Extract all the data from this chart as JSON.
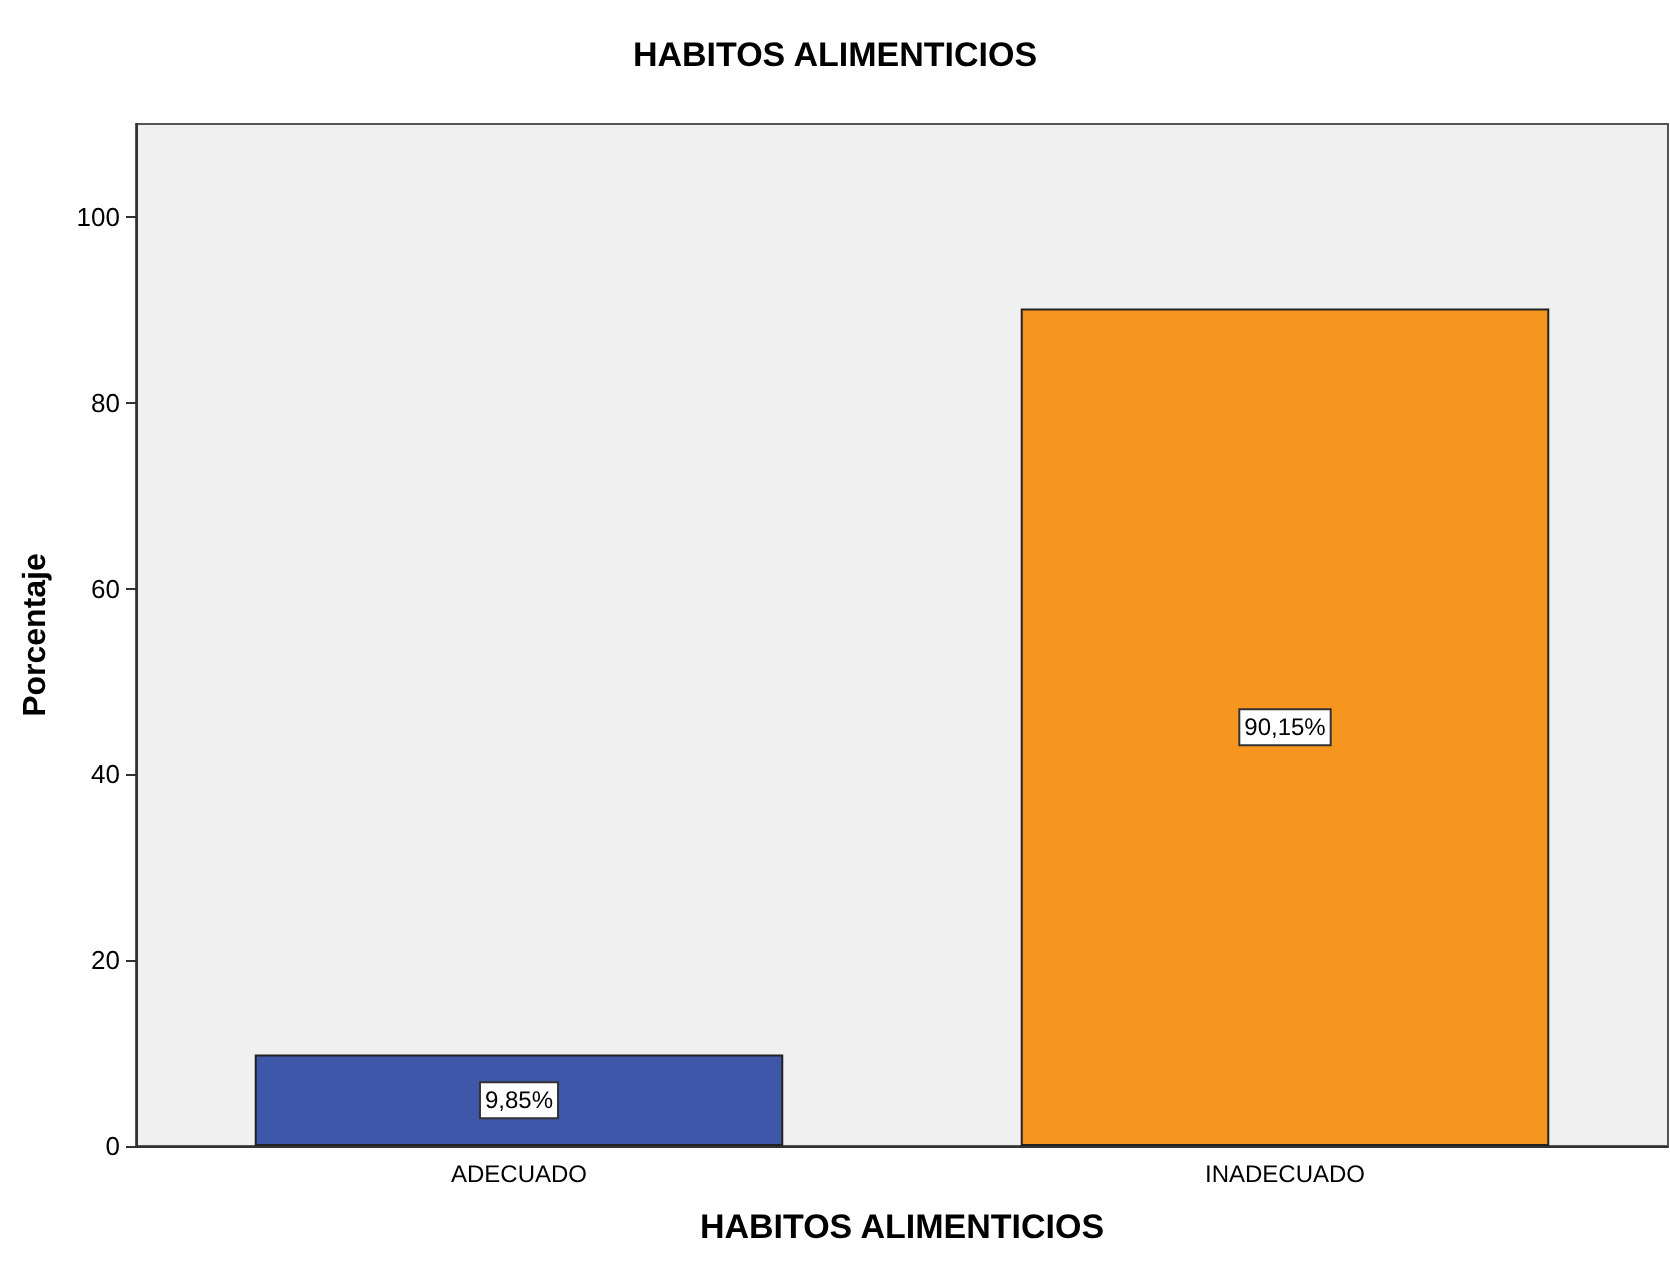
{
  "chart_data": {
    "type": "bar",
    "title": "HABITOS ALIMENTICIOS",
    "xlabel": "HABITOS ALIMENTICIOS",
    "ylabel": "Porcentaje",
    "categories": [
      "ADECUADO",
      "INADECUADO"
    ],
    "values": [
      9.85,
      90.15
    ],
    "colors": [
      "#3e57a8",
      "#f7961e"
    ],
    "value_labels": [
      "9,85%",
      "90,15%"
    ],
    "ylim": [
      0,
      110
    ],
    "yticks": [
      0,
      20,
      40,
      60,
      80,
      100
    ],
    "grid": false
  }
}
